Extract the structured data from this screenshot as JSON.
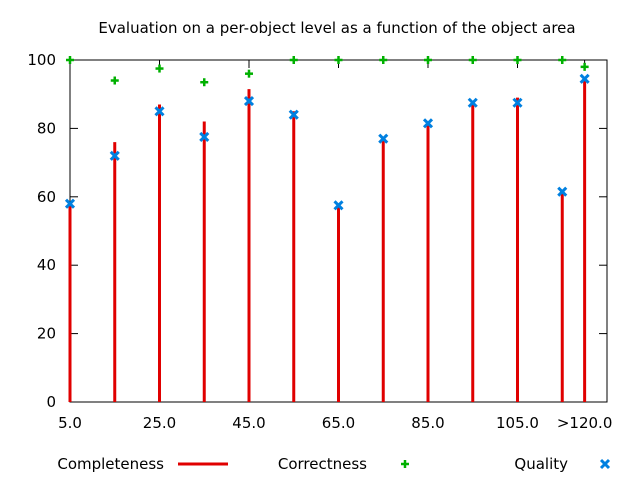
{
  "chart_data": {
    "type": "impulse+scatter",
    "title": "Evaluation on a per-object level as a function of the object area",
    "xlabel": "",
    "ylabel": "",
    "ylim": [
      0,
      100
    ],
    "xlim": [
      5,
      125
    ],
    "x_tick_labels": [
      {
        "x": 5,
        "label": "5.0"
      },
      {
        "x": 25,
        "label": "25.0"
      },
      {
        "x": 45,
        "label": "45.0"
      },
      {
        "x": 65,
        "label": "65.0"
      },
      {
        "x": 85,
        "label": "85.0"
      },
      {
        "x": 105,
        "label": "105.0"
      },
      {
        "x": 120,
        "label": ">120.0"
      }
    ],
    "y_tick_labels": [
      {
        "y": 0,
        "label": "0"
      },
      {
        "y": 20,
        "label": "20"
      },
      {
        "y": 40,
        "label": "40"
      },
      {
        "y": 60,
        "label": "60"
      },
      {
        "y": 80,
        "label": "80"
      },
      {
        "y": 100,
        "label": "100"
      }
    ],
    "x": [
      5,
      15,
      25,
      35,
      45,
      55,
      65,
      75,
      85,
      95,
      105,
      115,
      120
    ],
    "series": [
      {
        "name": "Completeness",
        "style": "impulses",
        "color": "#e00000",
        "values": [
          58,
          76,
          87,
          82,
          91.5,
          85,
          57,
          77,
          82,
          88,
          89,
          62,
          95
        ]
      },
      {
        "name": "Correctness",
        "style": "plus",
        "color": "#00b000",
        "values": [
          100,
          94,
          97.5,
          93.5,
          96,
          100,
          100,
          100,
          100,
          100,
          100,
          100,
          98
        ]
      },
      {
        "name": "Quality",
        "style": "cross",
        "color": "#0080e0",
        "values": [
          58,
          72,
          85,
          77.5,
          88,
          84,
          57.5,
          77,
          81.5,
          87.5,
          87.5,
          61.5,
          94.5
        ]
      }
    ],
    "grid": false,
    "legend_position": "bottom"
  }
}
